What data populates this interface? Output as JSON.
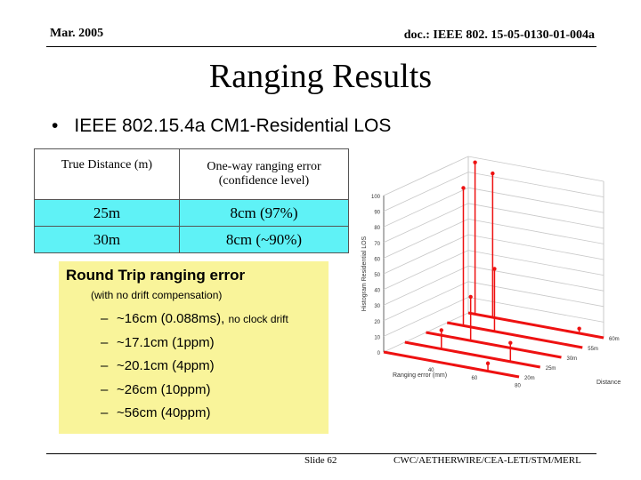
{
  "header": {
    "date": "Mar. 2005",
    "doc_id": "doc.: IEEE 802. 15-05-0130-01-004a"
  },
  "title": "Ranging Results",
  "bullet": {
    "symbol": "•",
    "text": "IEEE 802.15.4a CM1-Residential LOS"
  },
  "table": {
    "headers": [
      "True Distance (m)",
      "One-way ranging error (confidence level)"
    ],
    "rows": [
      {
        "distance": "25m",
        "error": "8cm (97%)"
      },
      {
        "distance": "30m",
        "error": "8cm (~90%)"
      }
    ],
    "row_color": "#5ff2f6"
  },
  "round_trip": {
    "title": "Round Trip ranging error",
    "subtitle": "(with no drift compensation)",
    "items": [
      {
        "dash": "–",
        "text": "~16cm (0.088ms), ",
        "note": "no clock drift"
      },
      {
        "dash": "–",
        "text": "~17.1cm (1ppm)",
        "note": ""
      },
      {
        "dash": "–",
        "text": "~20.1cm (4ppm)",
        "note": ""
      },
      {
        "dash": "–",
        "text": "~26cm (10ppm)",
        "note": ""
      },
      {
        "dash": "–",
        "text": "~56cm (40ppm)",
        "note": ""
      }
    ],
    "background": "#f9f49a"
  },
  "chart_data": {
    "type": "bar3d",
    "ylabel": "Histogram Residential LOS",
    "xlabel": "Ranging error (mm)",
    "zlabel": "Distance",
    "y_ticks": [
      "0",
      "10",
      "20",
      "30",
      "40",
      "50",
      "60",
      "70",
      "80",
      "90",
      "100"
    ],
    "x_ticks": [
      "40",
      "60",
      "80"
    ],
    "z_ticks": [
      "20m",
      "25m",
      "30m",
      "55m",
      "60m"
    ],
    "ylim": [
      0,
      100
    ],
    "series_color": "#ee1111",
    "distances": [
      "20m",
      "25m",
      "30m",
      "55m",
      "60m"
    ],
    "stems": [
      {
        "series": "60m",
        "pos": 0.05,
        "value": 97
      },
      {
        "series": "60m",
        "pos": 0.18,
        "value": 92
      },
      {
        "series": "55m",
        "pos": 0.12,
        "value": 88
      },
      {
        "series": "55m",
        "pos": 0.35,
        "value": 40
      },
      {
        "series": "30m",
        "pos": 0.33,
        "value": 28
      },
      {
        "series": "25m",
        "pos": 0.27,
        "value": 12
      },
      {
        "series": "25m",
        "pos": 0.78,
        "value": 12
      },
      {
        "series": "20m",
        "pos": 0.77,
        "value": 5
      },
      {
        "series": "60m",
        "pos": 0.82,
        "value": 3
      }
    ]
  },
  "footer": {
    "slide": "Slide 62",
    "authors": "CWC/AETHERWIRE/CEA-LETI/STM/MERL"
  }
}
